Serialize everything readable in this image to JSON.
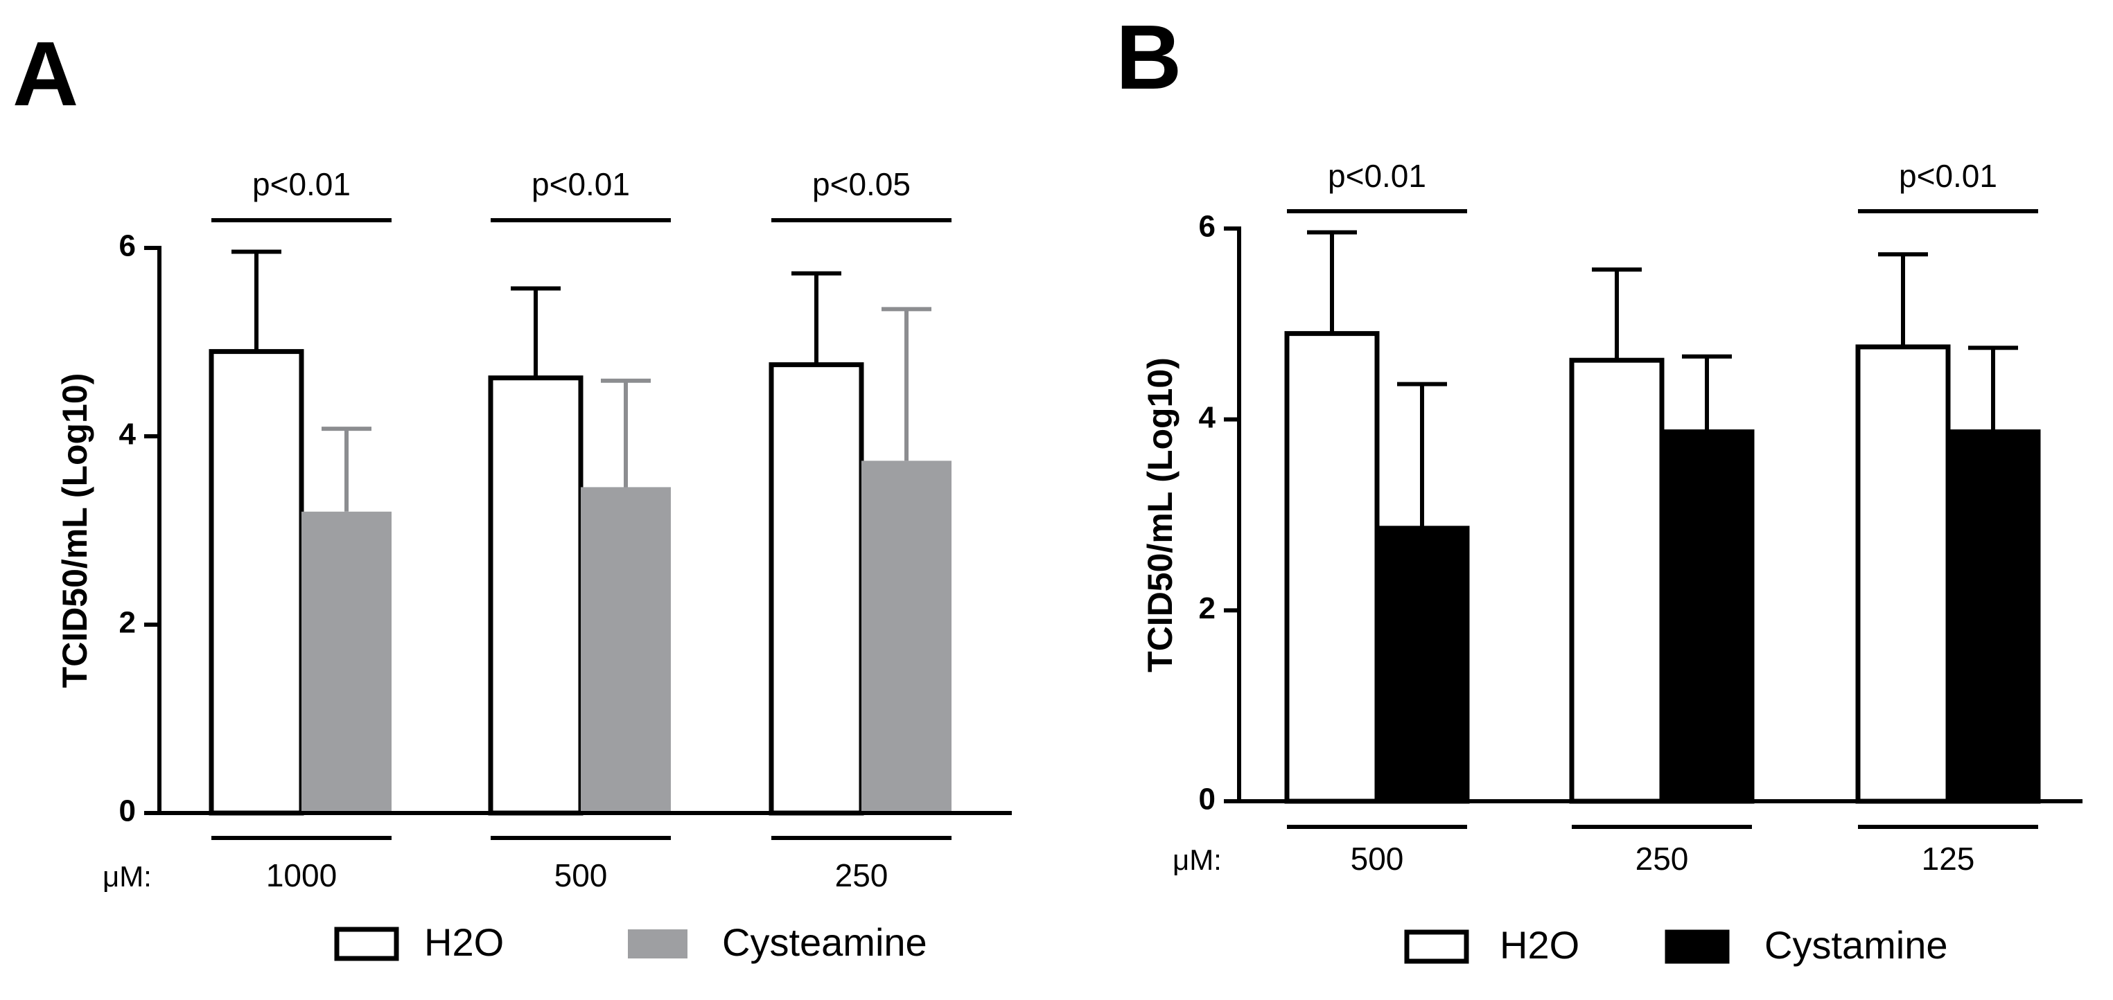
{
  "chart_data": [
    {
      "panel_label": "A",
      "type": "bar",
      "ylabel": "TCID50/mL (Log10)",
      "ylim": [
        0,
        6
      ],
      "yticks": [
        0,
        2,
        4,
        6
      ],
      "unit_label": "μM:",
      "categories": [
        "1000",
        "500",
        "250"
      ],
      "series": [
        {
          "name": "H2O",
          "values": [
            4.9,
            4.62,
            4.76
          ],
          "errors": [
            1.06,
            0.95,
            0.97
          ],
          "fill": "#ffffff",
          "stroke": "#000000",
          "error_color": "#000000"
        },
        {
          "name": "Cysteamine",
          "values": [
            3.2,
            3.46,
            3.74
          ],
          "errors": [
            0.88,
            1.13,
            1.61
          ],
          "fill": "#9e9fa2",
          "stroke": "none",
          "error_color": "#8c8d90"
        }
      ],
      "significance": [
        "p<0.01",
        "p<0.01",
        "p<0.05"
      ],
      "legend": [
        "H2O",
        "Cysteamine"
      ],
      "grid": false
    },
    {
      "panel_label": "B",
      "type": "bar",
      "ylabel": "TCID50/mL (Log10)",
      "ylim": [
        0,
        6
      ],
      "yticks": [
        0,
        2,
        4,
        6
      ],
      "unit_label": "μM:",
      "categories": [
        "500",
        "250",
        "125"
      ],
      "series": [
        {
          "name": "H2O",
          "values": [
            4.9,
            4.62,
            4.76
          ],
          "errors": [
            1.06,
            0.95,
            0.97
          ],
          "fill": "#ffffff",
          "stroke": "#000000",
          "error_color": "#000000"
        },
        {
          "name": "Cystamine",
          "values": [
            2.86,
            3.87,
            3.87
          ],
          "errors": [
            1.51,
            0.79,
            0.88
          ],
          "fill": "#000000",
          "stroke": "#000000",
          "error_color": "#000000"
        }
      ],
      "significance": [
        "p<0.01",
        "",
        "p<0.01"
      ],
      "legend": [
        "H2O",
        "Cystamine"
      ],
      "grid": false
    }
  ]
}
